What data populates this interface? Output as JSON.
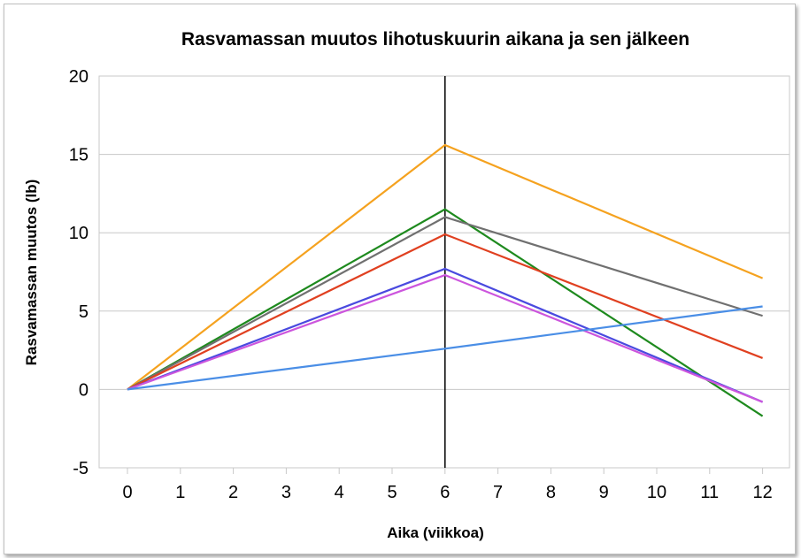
{
  "chart_data": {
    "type": "line",
    "title": "Rasvamassan muutos lihotuskuurin aikana ja sen jälkeen",
    "xlabel": "Aika (viikkoa)",
    "ylabel": "Rasvamassan muutos (lb)",
    "xlim": [
      0,
      12
    ],
    "ylim": [
      -5,
      20
    ],
    "x_ticks": [
      "0",
      "1",
      "2",
      "3",
      "4",
      "5",
      "6",
      "7",
      "8",
      "9",
      "10",
      "11",
      "12"
    ],
    "y_ticks": [
      "20",
      "15",
      "10",
      "5",
      "0",
      "-5"
    ],
    "grid": "horizontal",
    "vertical_marker_x": 6,
    "x": [
      0,
      6,
      12
    ],
    "series": [
      {
        "color": "#f5a21f",
        "values": [
          0,
          15.6,
          7.1
        ]
      },
      {
        "color": "#1e8a1e",
        "values": [
          0,
          11.5,
          -1.7
        ]
      },
      {
        "color": "#707070",
        "values": [
          0,
          11.0,
          4.7
        ]
      },
      {
        "color": "#e04020",
        "values": [
          0,
          9.9,
          2.0
        ]
      },
      {
        "color": "#4a4adf",
        "values": [
          0,
          7.7,
          -0.8
        ]
      },
      {
        "color": "#cc55dd",
        "values": [
          0,
          7.3,
          -0.8
        ]
      },
      {
        "color": "#4a8ee6",
        "values": [
          0,
          2.6,
          5.3
        ]
      }
    ]
  }
}
